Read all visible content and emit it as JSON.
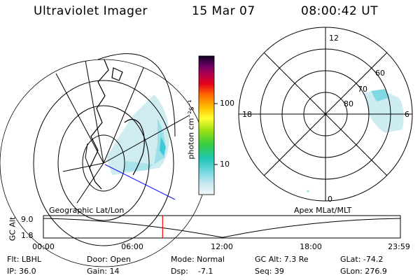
{
  "header": {
    "instrument": "Ultraviolet Imager",
    "date": "15 Mar 07",
    "time": "08:00:42 UT"
  },
  "colorbar": {
    "unit_label": "photon cm⁻²s⁻¹",
    "ticks": [
      "100",
      "10"
    ]
  },
  "polar": {
    "mlt_labels": {
      "top": "12",
      "left": "18",
      "right": "6",
      "bottom": "0"
    },
    "lat_labels": [
      "60",
      "70",
      "80"
    ]
  },
  "timeline": {
    "left_label": "Geographic Lat/Lon",
    "right_label": "Apex MLat/MLT",
    "y_axis_title": "GC Alt",
    "y_ticks": [
      "9.0",
      "1.8"
    ],
    "x_ticks": [
      "00:00",
      "06:00",
      "12:00",
      "18:00",
      "23:59"
    ],
    "marker_fraction": 0.334,
    "marker_color": "#ff0000"
  },
  "info": {
    "col1": [
      "Flt: LBHL",
      "IP: 36.0"
    ],
    "col2": [
      "Door: Open",
      "Gain: 14"
    ],
    "col3": [
      "Mode: Normal",
      "Dsp:    -7.1"
    ],
    "col4": [
      "GC Alt: 7.3 Re",
      "Seq: 39"
    ],
    "col5": [
      "GLat: -74.2",
      "GLon: 276.9"
    ]
  }
}
